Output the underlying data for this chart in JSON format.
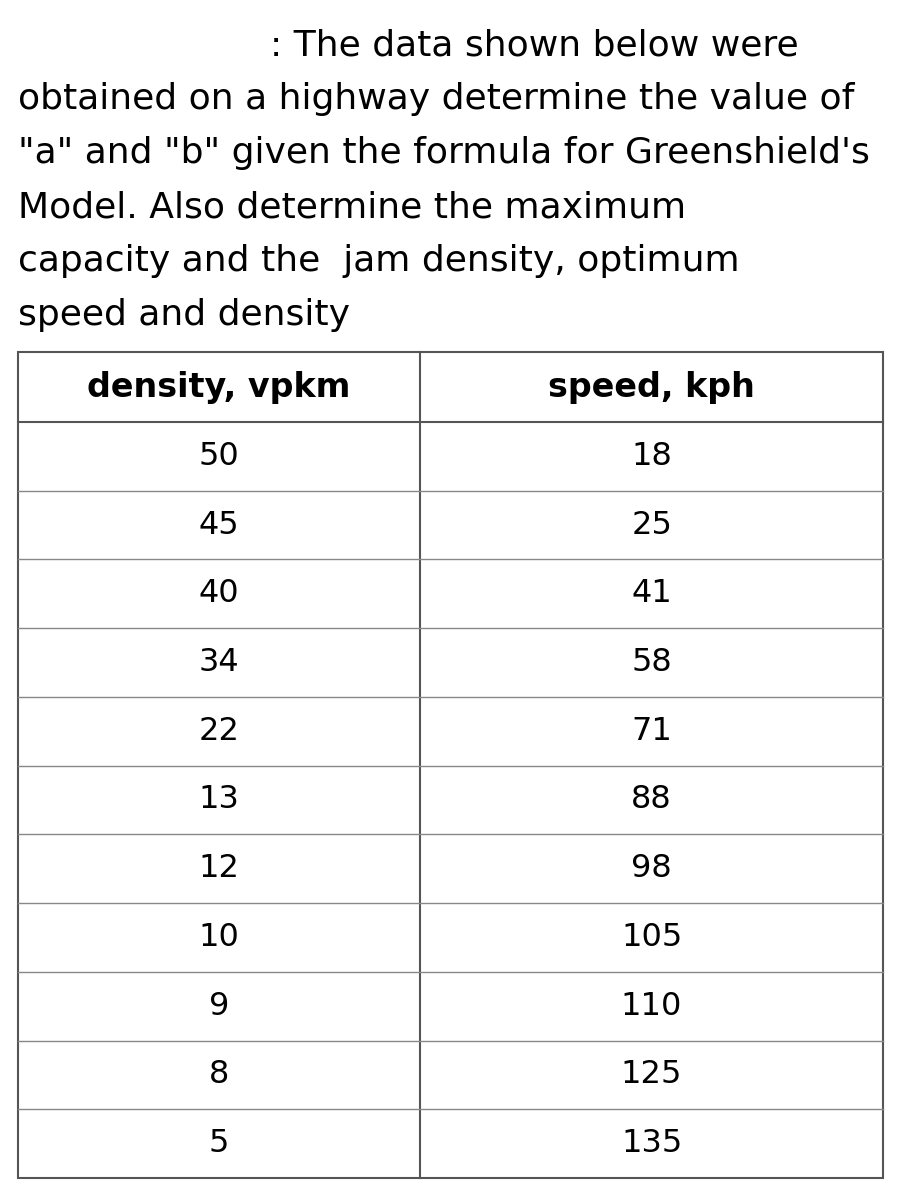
{
  "title_line1": ": The data shown below were",
  "title_line2": "obtained on a highway determine the value of",
  "title_line3": "\"a\" and \"b\" given the formula for Greenshield's",
  "title_line4": "Model. Also determine the maximum",
  "title_line5": "capacity and the  jam density, optimum",
  "title_line6": "speed and density",
  "col1_header": "density, vpkm",
  "col2_header": "speed, kph",
  "density": [
    50,
    45,
    40,
    34,
    22,
    13,
    12,
    10,
    9,
    8,
    5
  ],
  "speed": [
    18,
    25,
    41,
    58,
    71,
    88,
    98,
    105,
    110,
    125,
    135
  ],
  "background_color": "#ffffff",
  "text_color": "#000000",
  "title_fontsize": 26,
  "header_fontsize": 24,
  "data_fontsize": 23,
  "table_border_color": "#555555",
  "table_line_color": "#888888",
  "fig_width": 9.01,
  "fig_height": 12.0,
  "dpi": 100
}
